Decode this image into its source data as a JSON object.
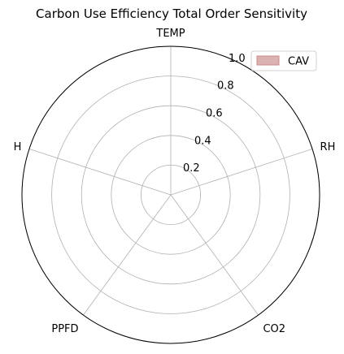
{
  "chart_data": {
    "type": "radar",
    "title": "Carbon Use Efficiency Total Order Sensitivity",
    "categories": [
      "TEMP",
      "RH",
      "CO2",
      "PPFD",
      "H"
    ],
    "series": [
      {
        "name": "CAV",
        "values": [
          0,
          0,
          0,
          0,
          0
        ],
        "fill_color": "#dbb2b2",
        "edge_color": "#c98a8a"
      }
    ],
    "rlim": [
      0,
      1.0
    ],
    "radial_ticks": [
      "0.2",
      "0.4",
      "0.6",
      "0.8",
      "1.0"
    ],
    "radial_tick_values": [
      0.2,
      0.4,
      0.6,
      0.8,
      1.0
    ],
    "grid": true,
    "legend_position": "top-right"
  }
}
